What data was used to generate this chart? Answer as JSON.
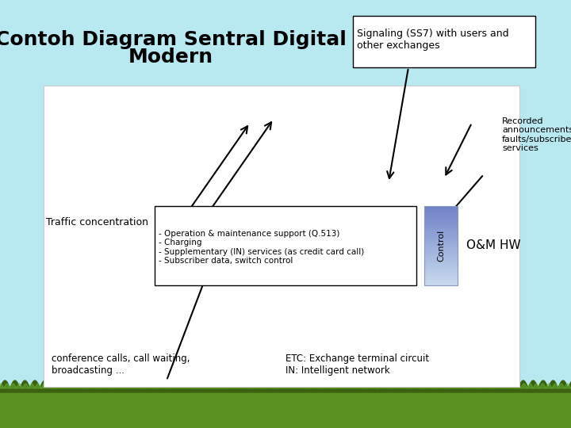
{
  "title_line1": "Contoh Diagram Sentral Digital",
  "title_line2": "Modern",
  "title_fontsize": 18,
  "title_fontweight": "bold",
  "bg_sky_color": "#B8E8F0",
  "bg_inner_color": "#FFFFFF",
  "signaling_box_text": "Signaling (SS7) with users and\nother exchanges",
  "recorded_text": "Recorded\nannouncements:\nfaults/subscriber\nservices",
  "traffic_text": "Traffic concentration",
  "oam_text": "O&M HW",
  "control_text": "Control",
  "conference_text": "conference calls, call waiting,\nbroadcasting ...",
  "etc_text": "ETC: Exchange terminal circuit\nIN: Intelligent network",
  "services_box_text": "- Operation & maintenance support (Q.513)\n- Charging\n- Supplementary (IN) services (as credit card call)\n- Subscriber data, switch control",
  "arrow_color": "#000000",
  "grass_color": "#5A9020",
  "grass_dark_color": "#3A6010",
  "control_box_top_color": "#4466AA",
  "control_box_bottom_color": "#C8D8EE"
}
